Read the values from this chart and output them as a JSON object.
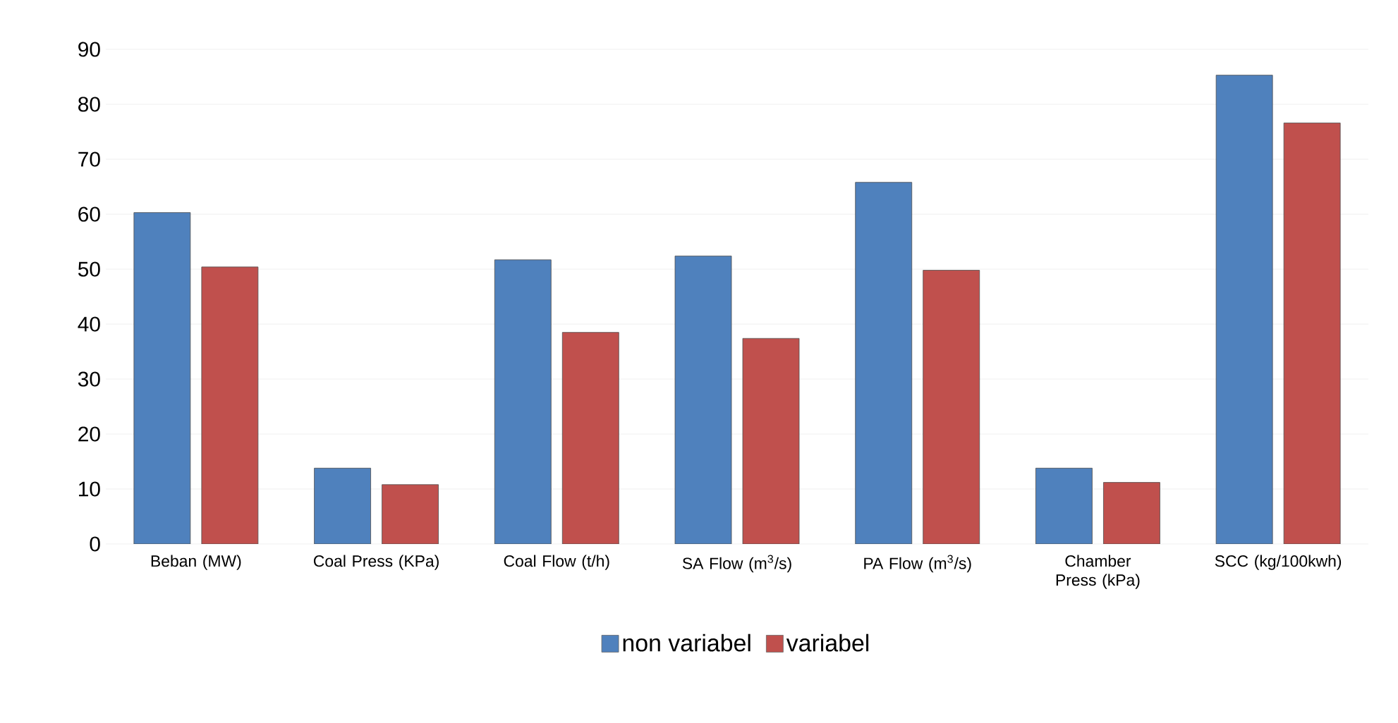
{
  "chart_data": {
    "type": "bar",
    "categories": [
      "Beban (MW)",
      "Coal Press (KPa)",
      "Coal Flow (t/h)",
      "SA Flow (m$^{3}$/s)",
      "PA Flow (m$^{3}$/s)",
      "Chamber Press (kPa)",
      "SCC (kg/100kwh)"
    ],
    "series": [
      {
        "name": "non variabel",
        "color": "#4f81bd",
        "values": [
          60.3,
          13.8,
          51.7,
          52.4,
          65.8,
          13.8,
          85.3
        ]
      },
      {
        "name": "variabel",
        "color": "#c0504d",
        "values": [
          50.4,
          10.8,
          38.5,
          37.4,
          49.8,
          11.2,
          76.6
        ]
      }
    ],
    "ylim": [
      0,
      90
    ],
    "yticks": [
      0,
      10,
      20,
      30,
      40,
      50,
      60,
      70,
      80,
      90
    ],
    "grid": "y",
    "legend": "bottom"
  }
}
